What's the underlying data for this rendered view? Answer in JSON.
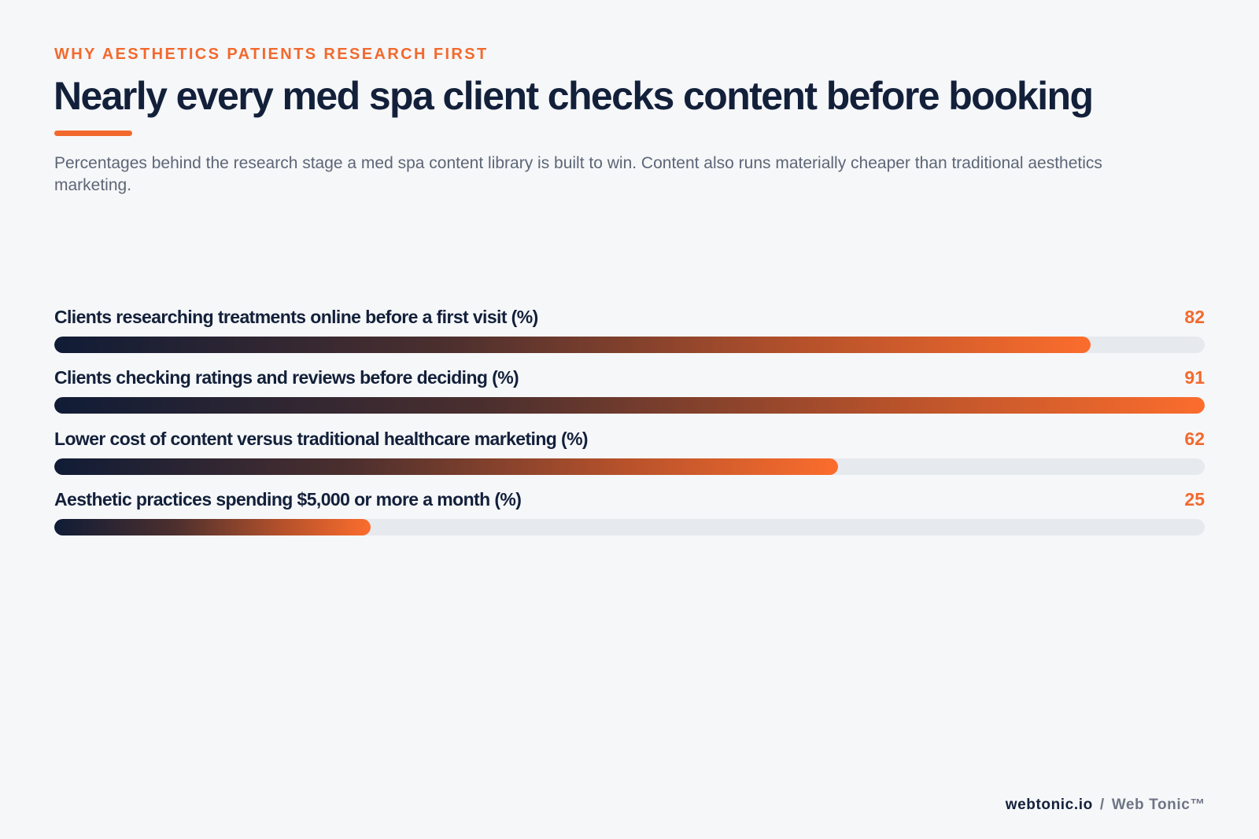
{
  "eyebrow": "WHY AESTHETICS PATIENTS RESEARCH FIRST",
  "title": "Nearly every med spa client checks content before booking",
  "subtitle": "Percentages behind the research stage a med spa content library is built to win. Content also runs materially cheaper than traditional aesthetics marketing.",
  "colors": {
    "accent": "#f2692d",
    "ink": "#13203a",
    "muted": "#5d6676",
    "track": "#e6e9ee",
    "gradient_start": "#101c36",
    "gradient_end": "#fb6d2d"
  },
  "chart_data": {
    "type": "bar",
    "orientation": "horizontal",
    "xlim": [
      0,
      91
    ],
    "categories": [
      "Clients researching treatments online before a first visit (%)",
      "Clients checking ratings and reviews before deciding (%)",
      "Lower cost of content versus traditional healthcare marketing (%)",
      "Aesthetic practices spending $5,000 or more a month (%)"
    ],
    "values": [
      82,
      91,
      62,
      25
    ]
  },
  "footer": {
    "site": "webtonic.io",
    "separator": "/",
    "brand": "Web Tonic™"
  }
}
